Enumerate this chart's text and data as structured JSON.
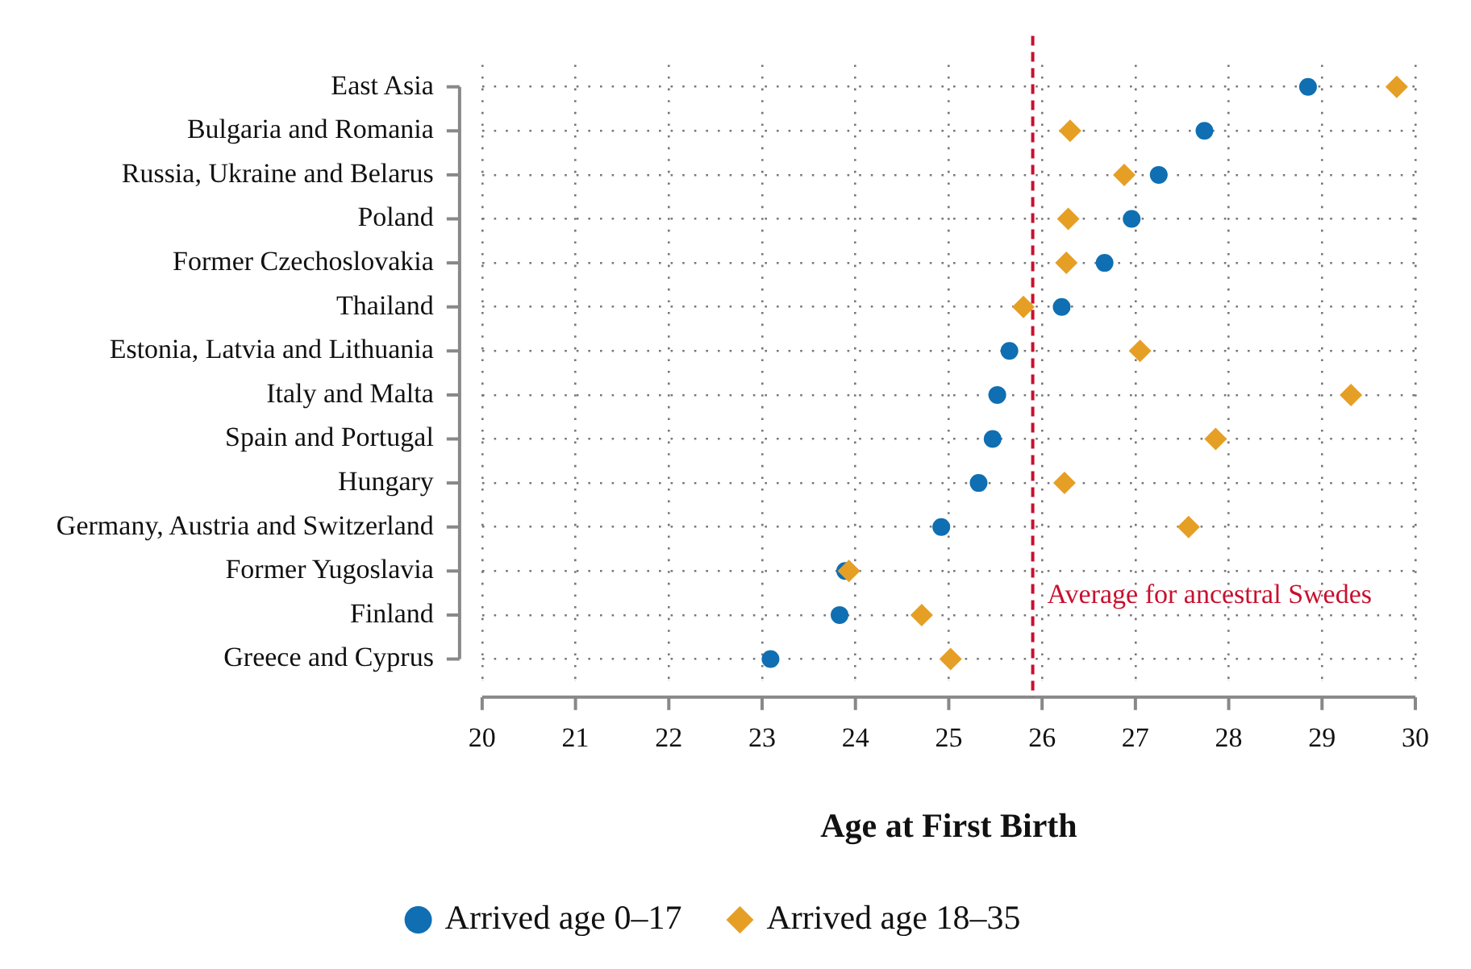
{
  "chart_data": {
    "type": "scatter",
    "orientation": "horizontal",
    "categories": [
      "East Asia",
      "Bulgaria and Romania",
      "Russia, Ukraine and Belarus",
      "Poland",
      "Former Czechoslovakia",
      "Thailand",
      "Estonia, Latvia and Lithuania",
      "Italy and Malta",
      "Spain and Portugal",
      "Hungary",
      "Germany, Austria and Switzerland",
      "Former Yugoslavia",
      "Finland",
      "Greece and Cyprus"
    ],
    "series": [
      {
        "name": "Arrived age 0–17",
        "color": "#0f6fb2",
        "marker": "circle",
        "values": [
          28.85,
          27.74,
          27.25,
          26.96,
          26.67,
          26.21,
          25.65,
          25.52,
          25.47,
          25.32,
          24.92,
          23.89,
          23.83,
          23.09
        ]
      },
      {
        "name": "Arrived age 18–35",
        "color": "#e69f25",
        "marker": "diamond",
        "values": [
          29.8,
          26.3,
          26.88,
          26.28,
          26.26,
          25.8,
          27.05,
          29.31,
          27.86,
          26.24,
          27.57,
          23.93,
          24.71,
          25.02
        ]
      }
    ],
    "xlabel": "Age at First Birth",
    "xlim": [
      20,
      30
    ],
    "xticks": [
      20,
      21,
      22,
      23,
      24,
      25,
      26,
      27,
      28,
      29,
      30
    ],
    "ref_lines": [
      {
        "axis": "x",
        "value": 25.9,
        "label": "Average for ancestral Swedes",
        "color": "#c8102e",
        "line_style": "dashed"
      }
    ],
    "grid": true,
    "legend": "bottom"
  }
}
